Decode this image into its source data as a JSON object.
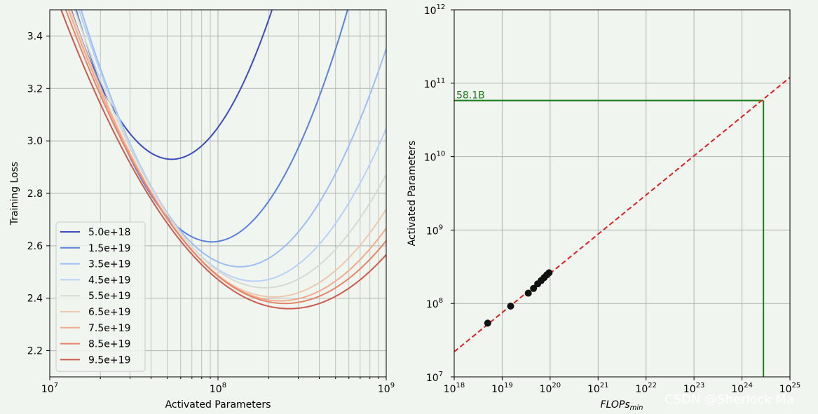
{
  "watermark": "CSDN @Sherlock  Ma",
  "chart_data": [
    {
      "type": "line",
      "xscale": "log",
      "xlim": [
        10000000,
        1000000000
      ],
      "ylim": [
        2.1,
        3.5
      ],
      "xlabel": "Activated Parameters",
      "ylabel": "Training Loss",
      "xtick_labels": [
        {
          "base": "10",
          "exp": "7"
        },
        {
          "base": "10",
          "exp": "8"
        },
        {
          "base": "10",
          "exp": "9"
        }
      ],
      "ytick_labels": [
        "2.2",
        "2.4",
        "2.6",
        "2.8",
        "3.0",
        "3.2",
        "3.4"
      ],
      "ytick_values": [
        2.2,
        2.4,
        2.6,
        2.8,
        3.0,
        3.2,
        3.4
      ],
      "grid": true,
      "legend_position": "lower-left",
      "series": [
        {
          "name": "5.0e+18",
          "color": "#3b4cc0",
          "min_x": 53000000,
          "min_y": 2.93,
          "a": 1.6
        },
        {
          "name": "1.5e+19",
          "color": "#5b7fdf",
          "min_x": 92000000,
          "min_y": 2.615,
          "a": 1.36
        },
        {
          "name": "3.5e+19",
          "color": "#9dbdf8",
          "min_x": 135000000,
          "min_y": 2.52,
          "a": 1.1
        },
        {
          "name": "4.5e+19",
          "color": "#b9d0f9",
          "min_x": 165000000,
          "min_y": 2.465,
          "a": 0.95
        },
        {
          "name": "5.5e+19",
          "color": "#d5dbd0",
          "min_x": 190000000,
          "min_y": 2.44,
          "a": 0.83
        },
        {
          "name": "6.5e+19",
          "color": "#ecc8b0",
          "min_x": 215000000,
          "min_y": 2.405,
          "a": 0.75
        },
        {
          "name": "7.5e+19",
          "color": "#f1ab8c",
          "min_x": 235000000,
          "min_y": 2.39,
          "a": 0.7
        },
        {
          "name": "8.5e+19",
          "color": "#e58468",
          "min_x": 250000000,
          "min_y": 2.38,
          "a": 0.66
        },
        {
          "name": "9.5e+19",
          "color": "#cc5a4d",
          "min_x": 265000000,
          "min_y": 2.36,
          "a": 0.62
        }
      ]
    },
    {
      "type": "scatter",
      "xscale": "log",
      "yscale": "log",
      "xlim": [
        1e+18,
        1e+25
      ],
      "ylim": [
        10000000.0,
        1000000000000.0
      ],
      "xlabel": {
        "text": "FLOPs",
        "sub": "min"
      },
      "ylabel": "Activated Parameters",
      "xtick_labels": [
        {
          "base": "10",
          "exp": "18"
        },
        {
          "base": "10",
          "exp": "19"
        },
        {
          "base": "10",
          "exp": "20"
        },
        {
          "base": "10",
          "exp": "21"
        },
        {
          "base": "10",
          "exp": "22"
        },
        {
          "base": "10",
          "exp": "23"
        },
        {
          "base": "10",
          "exp": "24"
        },
        {
          "base": "10",
          "exp": "25"
        }
      ],
      "ytick_labels": [
        {
          "base": "10",
          "exp": "7"
        },
        {
          "base": "10",
          "exp": "8"
        },
        {
          "base": "10",
          "exp": "9"
        },
        {
          "base": "10",
          "exp": "10"
        },
        {
          "base": "10",
          "exp": "11"
        },
        {
          "base": "10",
          "exp": "12"
        }
      ],
      "grid": true,
      "points": [
        {
          "x": 5e+18,
          "y": 54000000
        },
        {
          "x": 1.5e+19,
          "y": 92000000
        },
        {
          "x": 3.5e+19,
          "y": 138000000
        },
        {
          "x": 4.5e+19,
          "y": 160000000
        },
        {
          "x": 5.5e+19,
          "y": 185000000
        },
        {
          "x": 6.5e+19,
          "y": 205000000
        },
        {
          "x": 7.5e+19,
          "y": 225000000
        },
        {
          "x": 8.5e+19,
          "y": 245000000
        },
        {
          "x": 9.5e+19,
          "y": 262000000
        }
      ],
      "fit_line": {
        "color": "#e02020",
        "style": "dashed",
        "x": [
          1e+18,
          1e+25
        ],
        "y": 22000000,
        "y_end": 120000000000
      },
      "annotation": {
        "text": "58.1B",
        "color": "#1a7a1a",
        "x": 2.8e+24,
        "y": 58100000000
      }
    }
  ]
}
